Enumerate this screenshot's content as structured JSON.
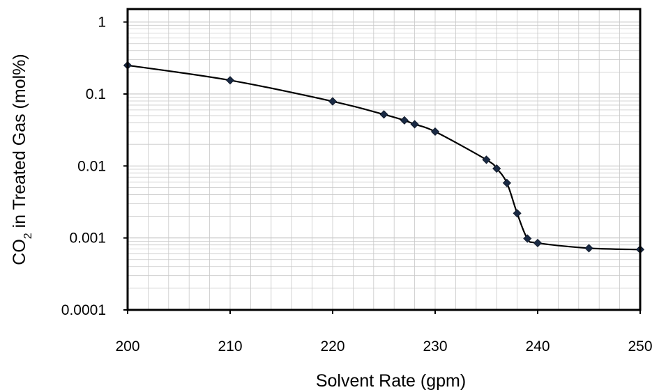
{
  "chart_data": {
    "type": "scatter",
    "title": "",
    "xlabel": "Solvent Rate (gpm)",
    "ylabel": {
      "prefix": "CO",
      "subscript": "2",
      "suffix": " in Treated Gas (mol%)"
    },
    "x_scale": "linear",
    "y_scale": "log",
    "xlim": [
      200,
      250
    ],
    "ylim": [
      0.0001,
      1
    ],
    "x_ticks": [
      200,
      210,
      220,
      230,
      240,
      250
    ],
    "x_tick_labels": [
      "200",
      "210",
      "220",
      "230",
      "240",
      "250"
    ],
    "y_ticks": [
      0.0001,
      0.001,
      0.01,
      0.1,
      1
    ],
    "y_tick_labels": [
      "0.0001",
      "0.001",
      "0.01",
      "0.1",
      "1"
    ],
    "grid": "vertical major and horizontal minor (log)",
    "legend": "none",
    "marker": "diamond",
    "smooth_line": true,
    "line_color": "#000000",
    "marker_color": "#1a2a44",
    "series": [
      {
        "x": [
          200,
          210,
          220,
          225,
          227,
          228,
          230,
          235,
          236,
          237,
          238,
          239,
          240,
          245,
          250
        ],
        "y": [
          0.25,
          0.155,
          0.079,
          0.052,
          0.043,
          0.038,
          0.03,
          0.0122,
          0.0092,
          0.0058,
          0.0022,
          0.00098,
          0.00085,
          0.00072,
          0.00069
        ]
      }
    ]
  }
}
